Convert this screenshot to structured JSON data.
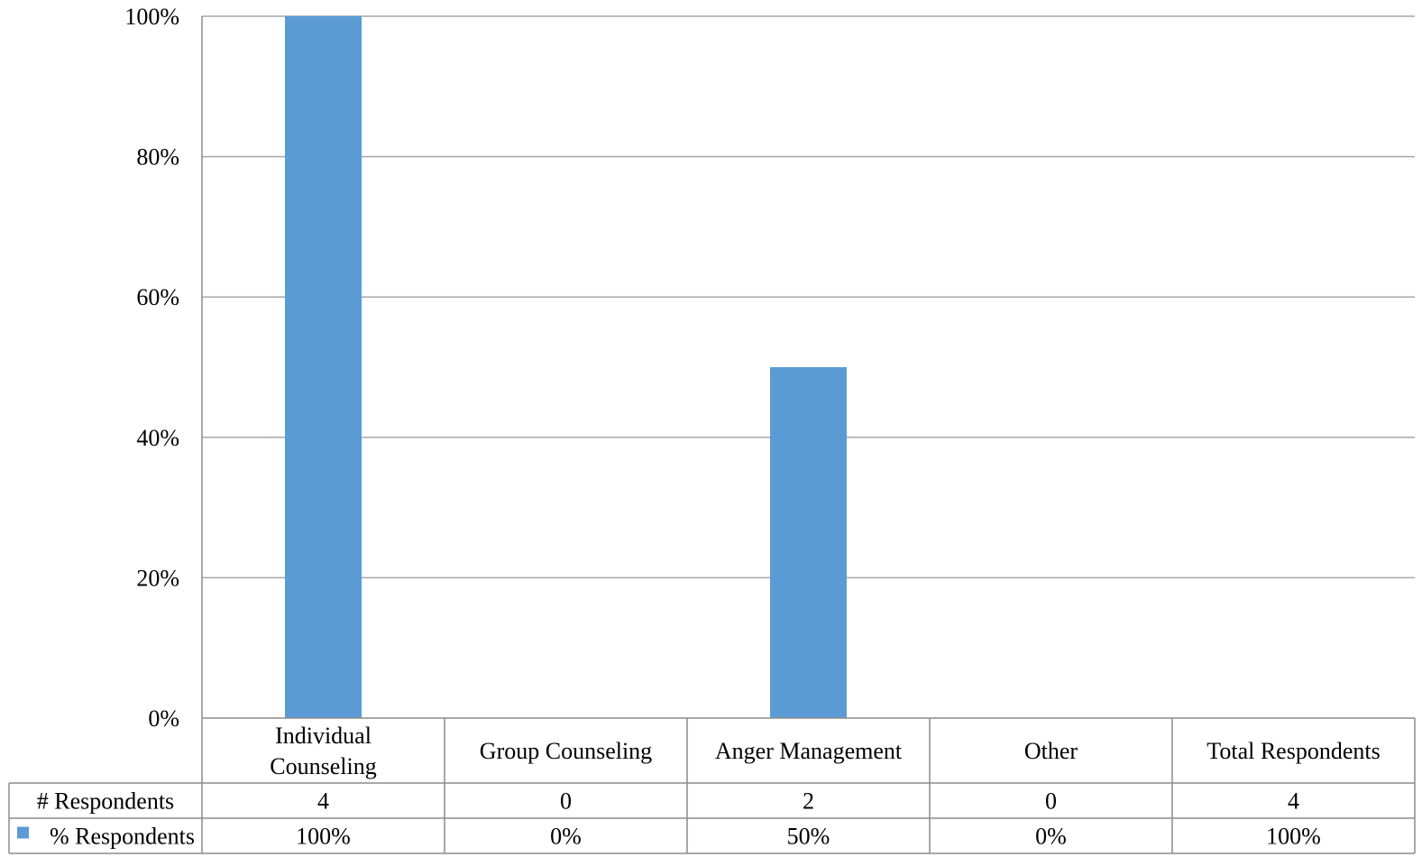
{
  "chart_data": {
    "type": "bar",
    "title": "",
    "xlabel": "",
    "ylabel": "",
    "ylim": [
      0,
      100
    ],
    "yticks": [
      "0%",
      "20%",
      "40%",
      "60%",
      "80%",
      "100%"
    ],
    "ytick_values": [
      0,
      20,
      40,
      60,
      80,
      100
    ],
    "grid": true,
    "categories": [
      [
        "Individual",
        "Counseling"
      ],
      [
        "Group Counseling"
      ],
      [
        "Anger Management"
      ],
      [
        "Other"
      ],
      [
        "Total Respondents"
      ]
    ],
    "series": [
      {
        "name": "% Respondents",
        "values": [
          100,
          0,
          50,
          null,
          null
        ]
      }
    ],
    "bar_color": "#5b9bd5",
    "data_table": {
      "rows": [
        {
          "label": "# Respondents",
          "legend_key": false,
          "values": [
            "4",
            "0",
            "2",
            "0",
            "4"
          ]
        },
        {
          "label": "% Respondents",
          "legend_key": true,
          "values": [
            "100%",
            "0%",
            "50%",
            "0%",
            "100%"
          ]
        }
      ]
    }
  }
}
